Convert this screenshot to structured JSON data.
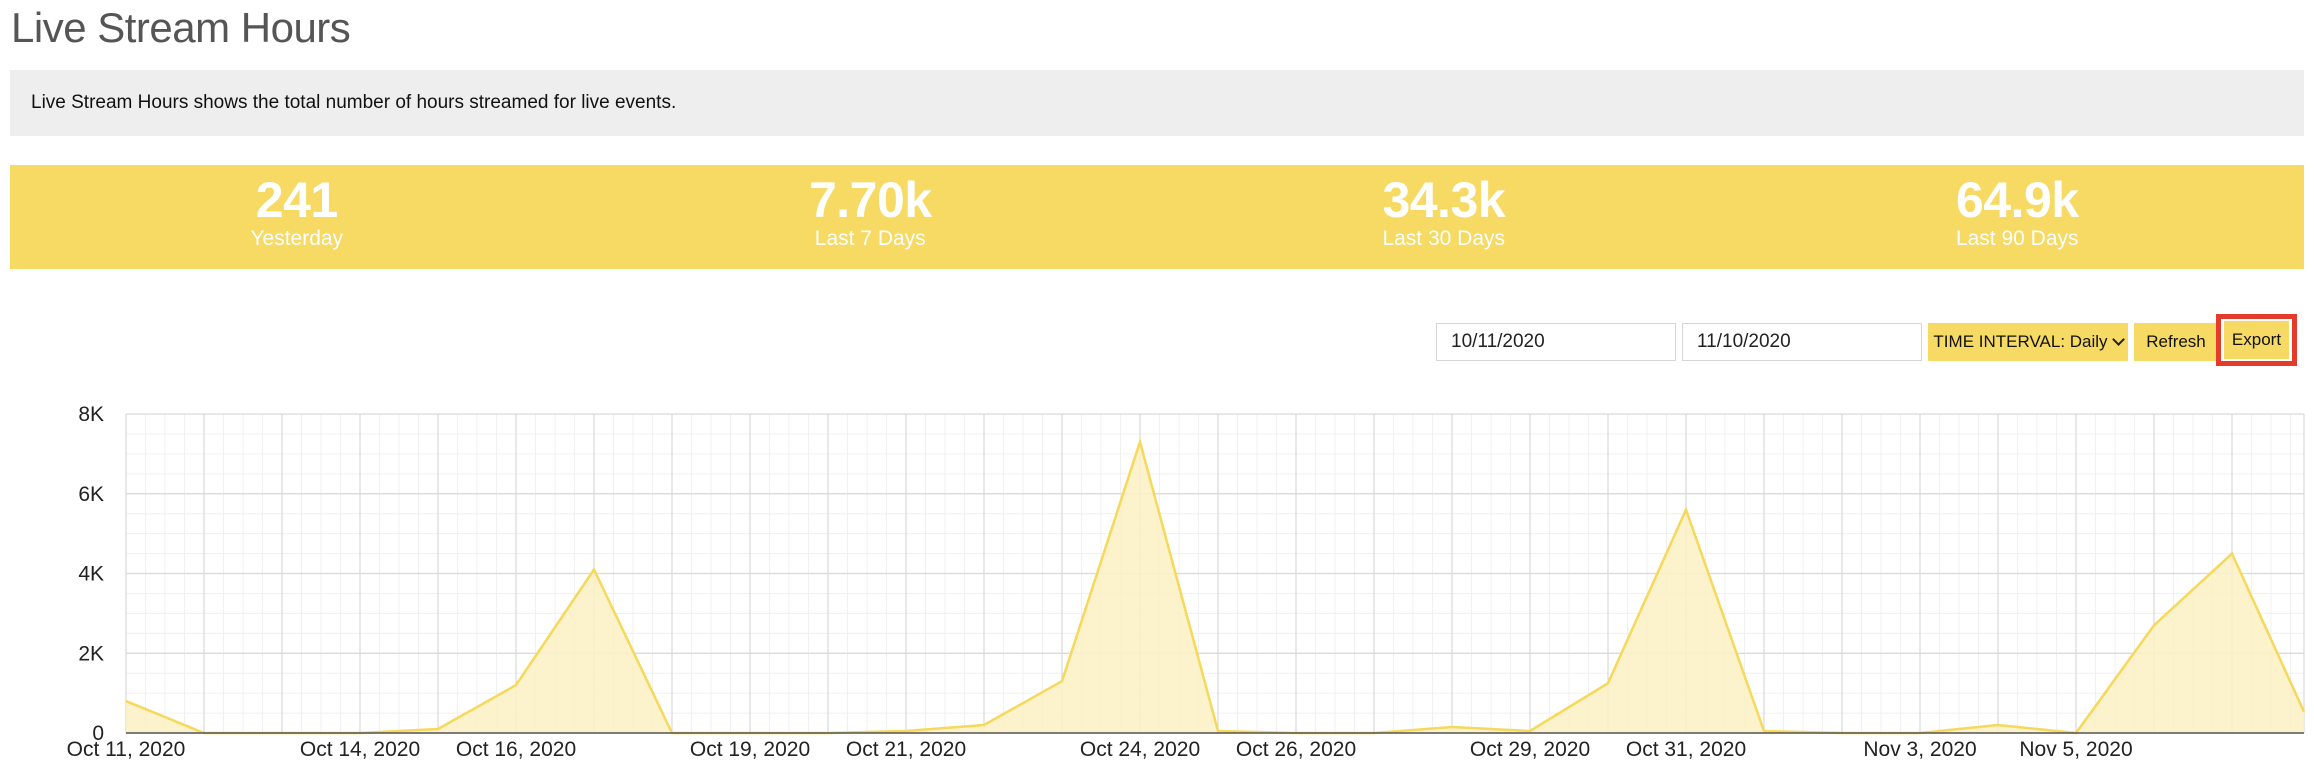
{
  "page": {
    "title": "Live Stream Hours",
    "description": "Live Stream Hours shows the total number of hours streamed for live events."
  },
  "stats": [
    {
      "value": "241",
      "label": "Yesterday"
    },
    {
      "value": "7.70k",
      "label": "Last 7 Days"
    },
    {
      "value": "34.3k",
      "label": "Last 30 Days"
    },
    {
      "value": "64.9k",
      "label": "Last 90 Days"
    }
  ],
  "controls": {
    "start_date": "10/11/2020",
    "end_date": "11/10/2020",
    "interval_label": "TIME INTERVAL: Daily",
    "refresh_label": "Refresh",
    "export_label": "Export"
  },
  "colors": {
    "accent": "#f6da63",
    "line": "#f6d85a",
    "area": "#fbf1c4",
    "highlight": "#e43c2c"
  },
  "chart_data": {
    "type": "area",
    "x": [
      "Oct 11, 2020",
      "Oct 12, 2020",
      "Oct 13, 2020",
      "Oct 14, 2020",
      "Oct 15, 2020",
      "Oct 16, 2020",
      "Oct 17, 2020",
      "Oct 18, 2020",
      "Oct 19, 2020",
      "Oct 20, 2020",
      "Oct 21, 2020",
      "Oct 22, 2020",
      "Oct 23, 2020",
      "Oct 24, 2020",
      "Oct 25, 2020",
      "Oct 26, 2020",
      "Oct 27, 2020",
      "Oct 28, 2020",
      "Oct 29, 2020",
      "Oct 30, 2020",
      "Oct 31, 2020",
      "Nov 1, 2020",
      "Nov 2, 2020",
      "Nov 3, 2020",
      "Nov 4, 2020",
      "Nov 5, 2020",
      "Nov 6, 2020",
      "Nov 7, 2020",
      "Nov 8, 2020"
    ],
    "values": [
      800,
      0,
      0,
      0,
      100,
      1200,
      4100,
      0,
      0,
      0,
      50,
      200,
      1300,
      7300,
      50,
      0,
      0,
      150,
      50,
      1250,
      5600,
      50,
      0,
      0,
      200,
      0,
      2700,
      4500,
      200
    ],
    "tick_labels": [
      "Oct 11, 2020",
      "Oct 14, 2020",
      "Oct 16, 2020",
      "Oct 19, 2020",
      "Oct 21, 2020",
      "Oct 24, 2020",
      "Oct 26, 2020",
      "Oct 29, 2020",
      "Oct 31, 2020",
      "Nov 3, 2020",
      "Nov 5, 2020"
    ],
    "ylim": [
      0,
      8000
    ],
    "yticks": [
      {
        "value": 0,
        "label": "0"
      },
      {
        "value": 2000,
        "label": "2K"
      },
      {
        "value": 4000,
        "label": "4K"
      },
      {
        "value": 6000,
        "label": "6K"
      },
      {
        "value": 8000,
        "label": "8K"
      }
    ],
    "grid": true
  }
}
